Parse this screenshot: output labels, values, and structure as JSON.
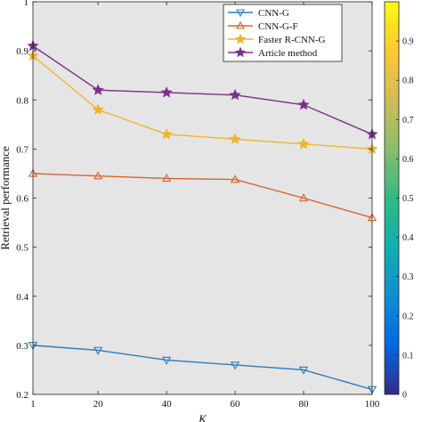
{
  "chart_data": {
    "type": "line",
    "xlabel": "K",
    "ylabel": "Retrieval performance",
    "xlim": [
      1,
      100
    ],
    "ylim": [
      0.2,
      1.0
    ],
    "x": [
      1,
      20,
      40,
      60,
      80,
      100
    ],
    "x_ticks": [
      "1",
      "20",
      "40",
      "60",
      "80",
      "100"
    ],
    "y_ticks": [
      "0.2",
      "0.3",
      "0.4",
      "0.5",
      "0.6",
      "0.7",
      "0.8",
      "0.9",
      "1"
    ],
    "grid": false,
    "background": "#e5e5e5",
    "legend_position": "top-right",
    "series": [
      {
        "name": "CNN-G",
        "marker": "triangle-down",
        "color": "#2a7bbd",
        "values": [
          0.3,
          0.29,
          0.27,
          0.26,
          0.25,
          0.21
        ]
      },
      {
        "name": "CNN-G-F",
        "marker": "triangle-up",
        "color": "#d9622b",
        "values": [
          0.65,
          0.645,
          0.64,
          0.638,
          0.6,
          0.56
        ]
      },
      {
        "name": "Faster R-CNN-G",
        "marker": "star",
        "color": "#f0b429",
        "values": [
          0.89,
          0.78,
          0.73,
          0.72,
          0.71,
          0.7
        ]
      },
      {
        "name": "Article method",
        "marker": "star",
        "color": "#7a2f8a",
        "values": [
          0.91,
          0.82,
          0.815,
          0.81,
          0.79,
          0.73
        ]
      }
    ],
    "colorbar": {
      "ticks": [
        "0",
        "0.1",
        "0.2",
        "0.3",
        "0.4",
        "0.5",
        "0.6",
        "0.7",
        "0.8",
        "0.9"
      ],
      "range": [
        0,
        1
      ],
      "colors": [
        "#352a87",
        "#0268e1",
        "#108ed2",
        "#0fafaf",
        "#33b982",
        "#88bf6a",
        "#d1bb59",
        "#fec832",
        "#f9fb0e"
      ]
    }
  }
}
